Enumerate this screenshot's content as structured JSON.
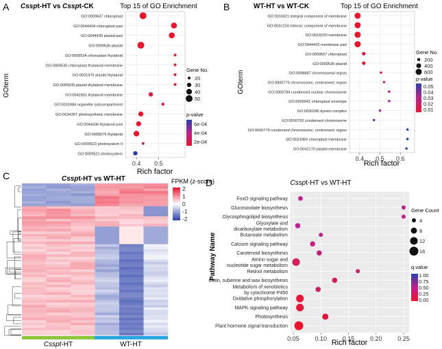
{
  "panels": {
    "A": {
      "letter": "A"
    },
    "B": {
      "letter": "B"
    },
    "C": {
      "letter": "C"
    },
    "D": {
      "letter": "D"
    }
  },
  "chart_data": [
    {
      "id": "A",
      "type": "scatter",
      "title_italic": "Cssp",
      "title_rest": "t-HT vs ",
      "title_italic2": "Cssp",
      "title_rest2": "t-CK",
      "subtitle": "Top 15 of GO Enrichment",
      "xlabel": "Rich factor",
      "ylabel": "GOterm",
      "xlim": [
        0.35,
        0.62
      ],
      "xticks": [
        0.4,
        0.5
      ],
      "grid": true,
      "legend_size_title": "Gene No.",
      "legend_sizes": [
        20,
        30,
        40,
        50
      ],
      "legend_color_title": "p-value",
      "legend_color_labels": [
        "6e-04",
        "4e-04",
        "2e-04"
      ],
      "colors": {
        "high": "#2b3fa8",
        "mid": "#b8248e",
        "low": "#e8162f"
      },
      "categories": [
        "GO:0009507 chloroplast",
        "GO:0044434 chloroplast part",
        "GO:0044435 plastid part",
        "GO:0009536 plastid",
        "GO:0009534 chloroplast thylakoid",
        "GO:0009535 chloroplast thylakoid membrane",
        "GO:0031976 plastid thylakoid",
        "GO:0055035 plastid thylakoid membrane",
        "GO:0042651 thylakoid membrane",
        "GO:0031984 organelle subcompartment",
        "GO:0034357 photosynthetic membrane",
        "GO:0044436 thylakoid part",
        "GO:0009579 thylakoid",
        "GO:0009523 photosystem II",
        "GO:0009521 photosystem"
      ],
      "x": [
        0.43,
        0.57,
        0.56,
        0.42,
        0.575,
        0.575,
        0.575,
        0.575,
        0.465,
        0.52,
        0.42,
        0.41,
        0.4,
        0.43,
        0.395
      ],
      "size": [
        50,
        42,
        42,
        50,
        20,
        20,
        20,
        20,
        30,
        22,
        35,
        35,
        40,
        20,
        30
      ],
      "p": [
        0.0001,
        0.0001,
        0.0001,
        0.0001,
        0.0001,
        0.0001,
        0.0001,
        0.0001,
        0.00015,
        0.0002,
        0.0001,
        0.0001,
        0.0001,
        0.0003,
        0.0007
      ]
    },
    {
      "id": "B",
      "type": "scatter",
      "title": "WT-HT vs WT-CK",
      "subtitle": "Top 15 of GO Enrichment",
      "xlabel": "Rich factor",
      "ylabel": "GOterm",
      "xlim": [
        0.35,
        0.67
      ],
      "xticks": [
        0.4,
        0.5,
        0.6
      ],
      "grid": true,
      "legend_size_title": "Gene No.",
      "legend_sizes": [
        200,
        400,
        600
      ],
      "legend_color_title": "p-value",
      "legend_color_labels": [
        "0.05",
        "0.04",
        "0.03",
        "0.02",
        "0.01"
      ],
      "colors": {
        "high": "#2b3fa8",
        "mid": "#b8248e",
        "low": "#e8162f"
      },
      "categories": [
        "GO:0016021 integral component of membrane",
        "GO:0031224 intrinsic component of membrane",
        "GO:0016020 membrane",
        "GO:0044425 membrane part",
        "GO:0009507 chloroplast",
        "GO:0009536 plastid",
        "GO:0098687 chromosomal region",
        "GO:0000775 chromosome, centromeric region",
        "GO:0000794 condensed nuclear chromosome",
        "GO:0009941 chloroplast envelope",
        "GO:0030286 dynein complex",
        "GO:0000793 condensed chromosome",
        "GO:0000779 condensed chromosome, centromeric region",
        "GO:0031969 chloroplast membrane",
        "GO:0042170 plastid membrane"
      ],
      "x": [
        0.39,
        0.39,
        0.39,
        0.39,
        0.42,
        0.42,
        0.505,
        0.52,
        0.545,
        0.545,
        0.5,
        0.47,
        0.635,
        0.635,
        0.63
      ],
      "size": [
        600,
        600,
        600,
        600,
        250,
        250,
        150,
        150,
        150,
        150,
        150,
        150,
        150,
        150,
        150
      ],
      "p": [
        0.005,
        0.005,
        0.005,
        0.005,
        0.008,
        0.008,
        0.015,
        0.02,
        0.028,
        0.03,
        0.03,
        0.04,
        0.052,
        0.052,
        0.052
      ]
    },
    {
      "id": "C",
      "type": "heatmap",
      "title_italic": "Cssp",
      "title_rest": "t-HT vs WT-HT",
      "colorbar_title": "FPKM (z-score)",
      "colorbar_ticks": [
        2,
        1,
        0,
        -1,
        -2
      ],
      "group_labels": [
        {
          "italic": "Csspt",
          "rest": "-HT"
        },
        {
          "italic": "",
          "rest": "WT-HT"
        }
      ],
      "group_colors": [
        "#8dc63f",
        "#29a8e0"
      ],
      "colors": {
        "high": "#e8162f",
        "mid": "#ffffff",
        "low": "#2b3fa8"
      }
    },
    {
      "id": "D",
      "type": "scatter",
      "title_italic": "Cssp",
      "title_rest": "t-HT vs WT-HT",
      "xlabel": "Rich factor",
      "ylabel": "Pathway Name",
      "xlim": [
        0.045,
        0.26
      ],
      "xticks": [
        "0.05",
        "0.10",
        "0.15",
        "0.20",
        "0.25"
      ],
      "xtick_values": [
        0.05,
        0.1,
        0.15,
        0.2,
        0.25
      ],
      "grid": true,
      "legend_size_title": "Gene Count",
      "legend_sizes": [
        4,
        8,
        12,
        16
      ],
      "legend_color_title": "q.value",
      "legend_color_labels": [
        "1.00",
        "0.75",
        "0.50",
        "0.25",
        "0.00"
      ],
      "colors": {
        "high": "#2b3fa8",
        "mid": "#b8248e",
        "low": "#e8162f"
      },
      "categories": [
        [
          "FoxO signaling pathway"
        ],
        [
          "Glucosinolate biosynthesis"
        ],
        [
          "Glycosphingolipid biosynthesis"
        ],
        [
          "Glyoxylate and",
          "dicarboxylate metabolism"
        ],
        [
          "Butanoate metabolism"
        ],
        [
          "Calcium signaling pathway"
        ],
        [
          "Carotenoid biosynthesis"
        ],
        [
          "Amino sugar and",
          "nucleotide sugar metabolism"
        ],
        [
          "Retinol metabolism"
        ],
        [
          "Cutin, suberine and wax biosynthesis"
        ],
        [
          "Metabolism of xenobiotics",
          "by cytochrome P450"
        ],
        [
          "Oxidative phosphorylation"
        ],
        [
          "MAPK signaling pathway"
        ],
        [
          "Photosynthesis"
        ],
        [
          "Plant hormone signal transduction"
        ]
      ],
      "x": [
        0.063,
        0.25,
        0.25,
        0.058,
        0.1,
        0.085,
        0.097,
        0.055,
        0.167,
        0.125,
        0.095,
        0.062,
        0.062,
        0.108,
        0.06
      ],
      "size": [
        5,
        4,
        4,
        6,
        4,
        6,
        6,
        12,
        4,
        6,
        6,
        12,
        12,
        8,
        16
      ],
      "q": [
        0.5,
        0.5,
        0.5,
        0.5,
        0.5,
        0.4,
        0.4,
        0.25,
        0.3,
        0.2,
        0.3,
        0.05,
        0.05,
        0.05,
        0.0
      ]
    }
  ]
}
